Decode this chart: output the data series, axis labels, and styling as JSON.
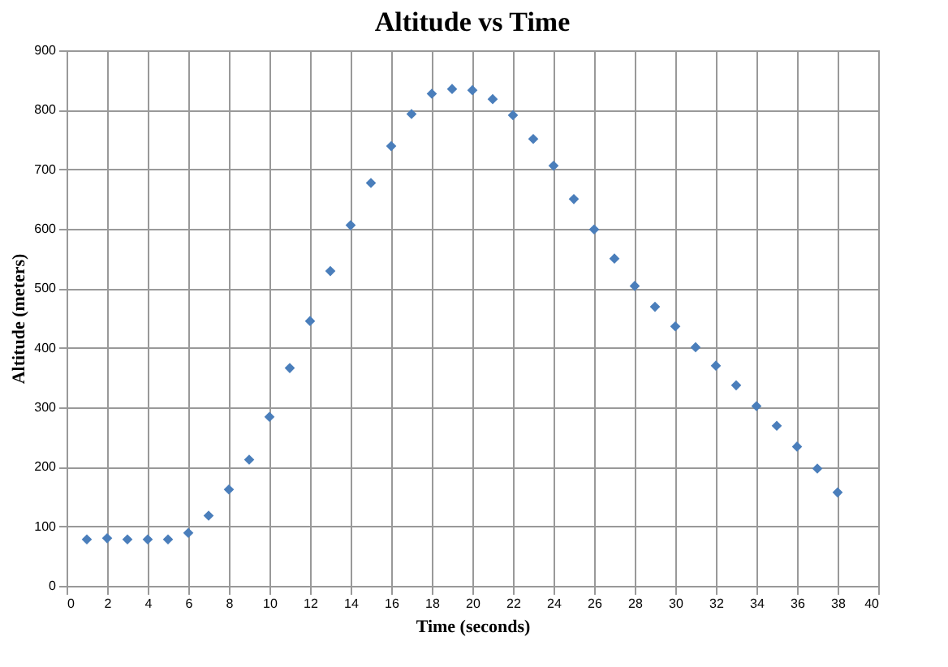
{
  "chart_data": {
    "type": "scatter",
    "title": "Altitude vs Time",
    "xlabel": "Time (seconds)",
    "ylabel": "Altitude (meters)",
    "x": [
      1,
      2,
      3,
      4,
      5,
      6,
      7,
      8,
      9,
      10,
      11,
      12,
      13,
      14,
      15,
      16,
      17,
      18,
      19,
      20,
      21,
      22,
      23,
      24,
      25,
      26,
      27,
      28,
      29,
      30,
      31,
      32,
      33,
      34,
      35,
      36,
      37,
      38
    ],
    "series": [
      {
        "color": "#4a7ebb",
        "values": [
          78,
          80,
          78,
          78,
          78,
          89,
          118,
          162,
          212,
          284,
          366,
          445,
          529,
          606,
          677,
          739,
          793,
          827,
          835,
          833,
          818,
          791,
          751,
          706,
          650,
          599,
          550,
          504,
          469,
          436,
          401,
          370,
          337,
          302,
          269,
          234,
          197,
          157
        ]
      }
    ],
    "xlim": [
      0,
      40
    ],
    "xticks": [
      0,
      2,
      4,
      6,
      8,
      10,
      12,
      14,
      16,
      18,
      20,
      22,
      24,
      26,
      28,
      30,
      32,
      34,
      36,
      38,
      40
    ],
    "ylim": [
      0,
      900
    ],
    "yticks": [
      0,
      100,
      200,
      300,
      400,
      500,
      600,
      700,
      800,
      900
    ],
    "grid": true,
    "marker": "diamond"
  }
}
